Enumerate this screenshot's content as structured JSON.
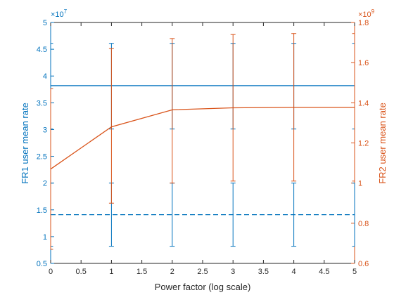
{
  "chart_data": {
    "type": "line",
    "xlabel": "Power factor (log scale)",
    "ylabel_left": "FR1 user mean rate",
    "ylabel_right": "FR2 user mean rate",
    "left_exponent": "×10",
    "left_exponent_power": "7",
    "right_exponent": "×10",
    "right_exponent_power": "9",
    "xlim": [
      0,
      5
    ],
    "ylim_left": [
      0.5,
      5
    ],
    "ylim_right": [
      0.6,
      1.8
    ],
    "x_ticks": [
      "0",
      "0.5",
      "1",
      "1.5",
      "2",
      "2.5",
      "3",
      "3.5",
      "4",
      "4.5",
      "5"
    ],
    "left_ticks": [
      "0.5",
      "1",
      "1.5",
      "2",
      "2.5",
      "3",
      "3.5",
      "4",
      "4.5",
      "5"
    ],
    "right_ticks": [
      "0.6",
      "0.8",
      "1",
      "1.2",
      "1.4",
      "1.6",
      "1.8"
    ],
    "grid": false,
    "colors": {
      "left": "#0072BD",
      "right": "#D95319",
      "axis": "#262626"
    },
    "series": [
      {
        "axis": "left",
        "style": "solid",
        "x": [
          0,
          1,
          2,
          3,
          4,
          5
        ],
        "y": [
          3.82,
          3.82,
          3.82,
          3.82,
          3.82,
          3.82
        ],
        "err_low": [
          3.01,
          3.01,
          3.01,
          3.01,
          3.01,
          3.01
        ],
        "err_high": [
          4.61,
          4.61,
          4.61,
          4.61,
          4.61,
          4.61
        ]
      },
      {
        "axis": "left",
        "style": "dashed",
        "x": [
          0,
          1,
          2,
          3,
          4,
          5
        ],
        "y": [
          1.41,
          1.41,
          1.41,
          1.41,
          1.41,
          1.41
        ],
        "err_low": [
          0.82,
          0.82,
          0.82,
          0.82,
          0.82,
          0.82
        ],
        "err_high": [
          2.0,
          2.0,
          2.0,
          2.0,
          2.0,
          2.0
        ]
      },
      {
        "axis": "right",
        "style": "solid",
        "x": [
          0,
          1,
          2,
          3,
          4,
          5
        ],
        "y": [
          1.07,
          1.28,
          1.365,
          1.375,
          1.377,
          1.377
        ],
        "err_low": [
          0.67,
          0.9,
          1.0,
          1.01,
          1.01,
          1.01
        ],
        "err_high": [
          1.47,
          1.67,
          1.72,
          1.74,
          1.745,
          1.745
        ]
      }
    ]
  }
}
